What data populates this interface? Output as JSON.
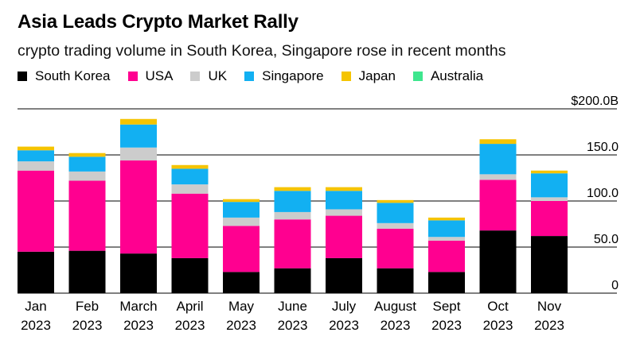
{
  "title": "Asia Leads Crypto Market Rally",
  "subtitle": "crypto trading volume in South Korea, Singapore rose in recent months",
  "colors": {
    "South Korea": "#000000",
    "USA": "#ff0090",
    "UK": "#cccccc",
    "Singapore": "#12b0f2",
    "Japan": "#f5c400",
    "Australia": "#3ee68e"
  },
  "chart_data": {
    "type": "bar",
    "stacked": true,
    "categories": [
      "Jan 2023",
      "Feb 2023",
      "March 2023",
      "April 2023",
      "May 2023",
      "June 2023",
      "July 2023",
      "August 2023",
      "Sept 2023",
      "Oct 2023",
      "Nov 2023"
    ],
    "category_lines": [
      [
        "Jan",
        "2023"
      ],
      [
        "Feb",
        "2023"
      ],
      [
        "March",
        "2023"
      ],
      [
        "April",
        "2023"
      ],
      [
        "May",
        "2023"
      ],
      [
        "June",
        "2023"
      ],
      [
        "July",
        "2023"
      ],
      [
        "August",
        "2023"
      ],
      [
        "Sept",
        "2023"
      ],
      [
        "Oct",
        "2023"
      ],
      [
        "Nov",
        "2023"
      ]
    ],
    "series": [
      {
        "name": "South Korea",
        "values": [
          45,
          46,
          43,
          38,
          23,
          27,
          38,
          27,
          23,
          68,
          62
        ]
      },
      {
        "name": "USA",
        "values": [
          88,
          76,
          101,
          70,
          50,
          53,
          46,
          43,
          34,
          55,
          38
        ]
      },
      {
        "name": "UK",
        "values": [
          10,
          10,
          14,
          10,
          9,
          8,
          7,
          6,
          4,
          6,
          4
        ]
      },
      {
        "name": "Singapore",
        "values": [
          12,
          16,
          25,
          17,
          17,
          23,
          20,
          22,
          18,
          33,
          26
        ]
      },
      {
        "name": "Japan",
        "values": [
          4,
          4,
          6,
          4,
          3,
          4,
          4,
          3,
          3,
          5,
          3
        ]
      },
      {
        "name": "Australia",
        "values": [
          0,
          0,
          0,
          0,
          0,
          0,
          0,
          0,
          0,
          0,
          0
        ]
      }
    ],
    "ylim": [
      0,
      200
    ],
    "y_ticks": [
      0,
      50,
      100,
      150,
      200
    ],
    "y_tick_labels": [
      "0",
      "50.0",
      "100.0",
      "150.0",
      "$200.0B"
    ],
    "grid": true,
    "legend_position": "top-left"
  }
}
